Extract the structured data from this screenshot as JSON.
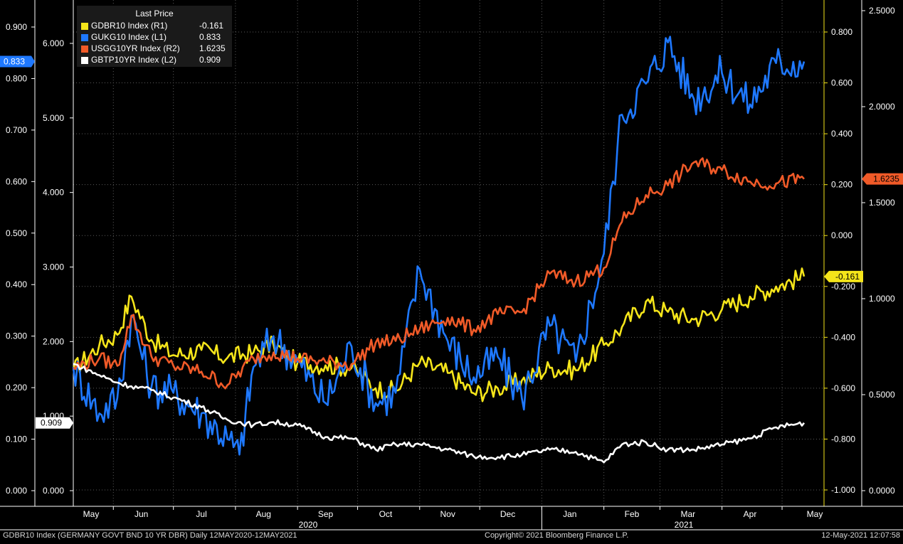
{
  "chart_data": {
    "type": "line",
    "legend": {
      "title": "Last Price",
      "placement": "top-left",
      "entries": [
        {
          "name": "GDBR10 Index  (R1)",
          "value": "-0.161",
          "color": "#f5e51a"
        },
        {
          "name": "GUKG10 Index  (L1)",
          "value": "0.833",
          "color": "#1e78ff"
        },
        {
          "name": "USGG10YR Index  (R2)",
          "value": "1.6235",
          "color": "#f05a28"
        },
        {
          "name": "GBTP10YR Index  (L2)",
          "value": "0.909",
          "color": "#ffffff"
        }
      ]
    },
    "x_tick_labels": [
      "May",
      "Jun",
      "Jul",
      "Aug",
      "Sep",
      "Oct",
      "Nov",
      "Dec",
      "Jan",
      "Feb",
      "Mar",
      "Apr",
      "May"
    ],
    "year_labels": [
      "2020",
      "2021"
    ],
    "axes": {
      "L1": {
        "ticks": [
          "0.900",
          "0.800",
          "0.700",
          "0.600",
          "0.500",
          "0.400",
          "0.300",
          "0.200",
          "0.100",
          "0.000"
        ],
        "range": [
          0,
          0.9
        ],
        "color": "#ffffff"
      },
      "L2": {
        "ticks": [
          "6.000",
          "5.000",
          "4.000",
          "3.000",
          "2.000",
          "1.000",
          "0.000"
        ],
        "range": [
          0,
          6
        ],
        "color": "#ffffff"
      },
      "R1": {
        "ticks": [
          "0.800",
          "0.600",
          "0.400",
          "0.200",
          "0.000",
          "-0.200",
          "-0.400",
          "-0.600",
          "-0.800",
          "-1.000"
        ],
        "range": [
          -1,
          0.8
        ],
        "color": "#f5e51a"
      },
      "R2": {
        "ticks": [
          "2.5000",
          "2.0000",
          "1.5000",
          "1.0000",
          "0.5000",
          "0.0000"
        ],
        "range": [
          0,
          2.5
        ],
        "color": "#ffffff"
      }
    },
    "last_value_tags": [
      {
        "axis": "L1",
        "label": "0.833",
        "value": 0.833,
        "color": "#1e78ff",
        "text_color": "#ffffff"
      },
      {
        "axis": "L2",
        "label": "0.909",
        "value": 0.909,
        "color": "#ffffff",
        "text_color": "#000000"
      },
      {
        "axis": "R1",
        "label": "-0.161",
        "value": -0.161,
        "color": "#f5e51a",
        "text_color": "#000000"
      },
      {
        "axis": "R2",
        "label": "1.6235",
        "value": 1.6235,
        "color": "#f05a28",
        "text_color": "#000000"
      }
    ],
    "grid": true,
    "series": [
      {
        "name": "GDBR10 Index",
        "axis": "R1",
        "color": "#f5e51a",
        "x": [
          "May-12",
          "May-25",
          "Jun-03",
          "Jun-10",
          "Jun-20",
          "Jul-01",
          "Jul-15",
          "Jul-28",
          "Aug-10",
          "Aug-20",
          "Sep-01",
          "Sep-15",
          "Sep-28",
          "Oct-10",
          "Oct-20",
          "Nov-01",
          "Nov-15",
          "Nov-28",
          "Dec-10",
          "Dec-22",
          "Jan-05",
          "Jan-18",
          "Feb-01",
          "Feb-10",
          "Feb-22",
          "Mar-05",
          "Mar-18",
          "Apr-01",
          "Apr-15",
          "Apr-28",
          "May-12"
        ],
        "values": [
          -0.53,
          -0.43,
          -0.39,
          -0.24,
          -0.41,
          -0.47,
          -0.45,
          -0.48,
          -0.46,
          -0.43,
          -0.5,
          -0.51,
          -0.52,
          -0.6,
          -0.61,
          -0.5,
          -0.54,
          -0.62,
          -0.6,
          -0.57,
          -0.52,
          -0.53,
          -0.43,
          -0.36,
          -0.26,
          -0.3,
          -0.33,
          -0.29,
          -0.24,
          -0.2,
          -0.161
        ]
      },
      {
        "name": "GUKG10 Index",
        "axis": "L1",
        "color": "#1e78ff",
        "x": [
          "May-12",
          "May-25",
          "Jun-03",
          "Jun-10",
          "Jun-20",
          "Jul-01",
          "Jul-15",
          "Jul-28",
          "Aug-03",
          "Aug-10",
          "Aug-20",
          "Sep-01",
          "Sep-15",
          "Sep-28",
          "Oct-10",
          "Oct-20",
          "Nov-01",
          "Nov-15",
          "Nov-28",
          "Dec-10",
          "Dec-22",
          "Jan-05",
          "Jan-18",
          "Feb-01",
          "Feb-10",
          "Feb-22",
          "Mar-05",
          "Mar-18",
          "Apr-01",
          "Apr-15",
          "Apr-28",
          "May-12"
        ],
        "values": [
          0.24,
          0.15,
          0.18,
          0.34,
          0.2,
          0.19,
          0.15,
          0.1,
          0.07,
          0.24,
          0.3,
          0.25,
          0.17,
          0.28,
          0.17,
          0.19,
          0.43,
          0.29,
          0.22,
          0.26,
          0.18,
          0.32,
          0.25,
          0.46,
          0.73,
          0.79,
          0.87,
          0.76,
          0.81,
          0.75,
          0.83,
          0.833
        ]
      },
      {
        "name": "USGG10YR Index",
        "axis": "R2",
        "color": "#f05a28",
        "x": [
          "May-12",
          "May-25",
          "Jun-03",
          "Jun-10",
          "Jun-20",
          "Jul-01",
          "Jul-15",
          "Jul-28",
          "Aug-10",
          "Aug-20",
          "Sep-01",
          "Sep-15",
          "Sep-28",
          "Oct-10",
          "Oct-20",
          "Nov-01",
          "Nov-15",
          "Nov-28",
          "Dec-10",
          "Dec-22",
          "Jan-05",
          "Jan-18",
          "Feb-01",
          "Feb-10",
          "Feb-22",
          "Mar-05",
          "Mar-18",
          "Apr-01",
          "Apr-15",
          "Apr-28",
          "May-12"
        ],
        "values": [
          0.64,
          0.69,
          0.65,
          0.91,
          0.7,
          0.65,
          0.62,
          0.55,
          0.69,
          0.72,
          0.69,
          0.67,
          0.66,
          0.77,
          0.78,
          0.84,
          0.9,
          0.84,
          0.92,
          0.93,
          1.13,
          1.09,
          1.16,
          1.4,
          1.54,
          1.59,
          1.71,
          1.67,
          1.61,
          1.6,
          1.6235
        ]
      },
      {
        "name": "GBTP10YR Index",
        "axis": "L2",
        "color": "#ffffff",
        "x": [
          "May-12",
          "May-25",
          "Jun-03",
          "Jun-10",
          "Jun-20",
          "Jul-01",
          "Jul-15",
          "Jul-28",
          "Aug-10",
          "Aug-20",
          "Sep-01",
          "Sep-15",
          "Sep-28",
          "Oct-10",
          "Oct-20",
          "Nov-01",
          "Nov-15",
          "Nov-28",
          "Dec-10",
          "Dec-22",
          "Jan-05",
          "Jan-18",
          "Feb-01",
          "Feb-10",
          "Feb-22",
          "Mar-05",
          "Mar-18",
          "Apr-01",
          "Apr-15",
          "Apr-28",
          "May-12"
        ],
        "values": [
          1.7,
          1.55,
          1.45,
          1.4,
          1.35,
          1.25,
          1.12,
          0.95,
          0.88,
          0.92,
          0.88,
          0.72,
          0.7,
          0.55,
          0.62,
          0.62,
          0.55,
          0.46,
          0.45,
          0.48,
          0.55,
          0.52,
          0.38,
          0.62,
          0.65,
          0.55,
          0.55,
          0.62,
          0.7,
          0.85,
          0.909
        ]
      }
    ]
  },
  "footer": {
    "left": "GDBR10 Index (GERMANY GOVT BND 10 YR DBR)  Daily 12MAY2020-12MAY2021",
    "center": "Copyright© 2021 Bloomberg Finance L.P.",
    "right": "12-May-2021 12:07:58"
  }
}
